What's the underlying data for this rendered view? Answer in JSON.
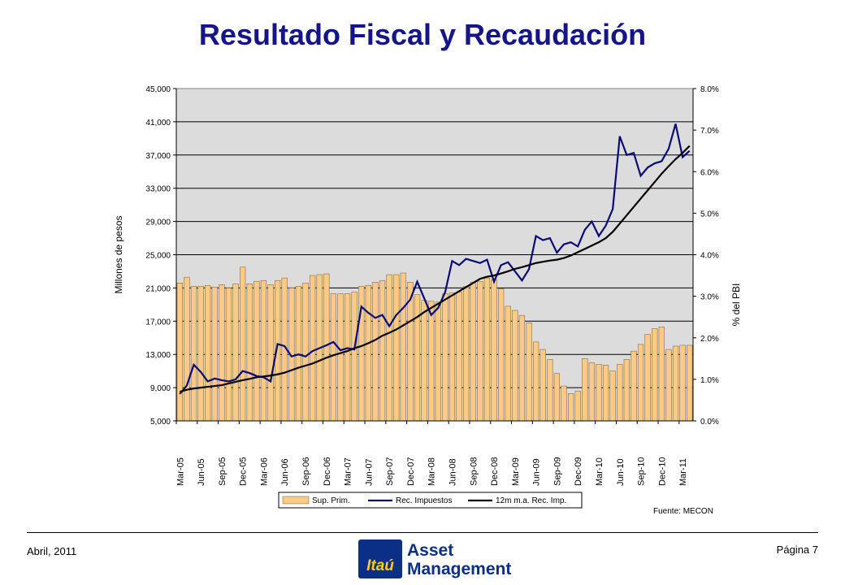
{
  "title": "Resultado Fiscal y Recaudación",
  "source": "Fuente: MECON",
  "footer": {
    "date": "Abril, 2011",
    "page": "Página 7"
  },
  "logo": {
    "brand": "Itaú",
    "line1": "Asset",
    "line2": "Management"
  },
  "colors": {
    "title": "#15158a",
    "bars": "#fcca86",
    "bar_border": "#7a5a20",
    "rec_impuestos": "#0a0a78",
    "ma": "#000000",
    "plot_bg": "#dcdcdc"
  },
  "chart_data": {
    "type": "bar",
    "ylabel": "Millones de pesos",
    "y2label": "% del PBI",
    "ylim": [
      5000,
      45000
    ],
    "y2lim": [
      0,
      8
    ],
    "yticks": [
      "5,000",
      "9,000",
      "13,000",
      "17,000",
      "21,000",
      "25,000",
      "29,000",
      "33,000",
      "37,000",
      "41,000",
      "45,000"
    ],
    "y2ticks": [
      "0.0%",
      "1.0%",
      "2.0%",
      "3.0%",
      "4.0%",
      "5.0%",
      "6.0%",
      "7.0%",
      "8.0%"
    ],
    "xticks": [
      "Mar-05",
      "Jun-05",
      "Sep-05",
      "Dec-05",
      "Mar-06",
      "Jun-06",
      "Sep-06",
      "Dec-06",
      "Mar-07",
      "Jun-07",
      "Sep-07",
      "Dec-07",
      "Mar-08",
      "Jun-08",
      "Sep-08",
      "Dec-08",
      "Mar-09",
      "Jun-09",
      "Sep-09",
      "Dec-09",
      "Mar-10",
      "Jun-10",
      "Sep-10",
      "Dec-10",
      "Mar-11"
    ],
    "grid": true,
    "legend": "bottom",
    "series": [
      {
        "name": "Sup. Prim.",
        "axis": "left",
        "kind": "bar",
        "values": [
          21600,
          22300,
          21200,
          21200,
          21300,
          21100,
          21400,
          21000,
          21500,
          23500,
          21500,
          21800,
          21900,
          21400,
          21900,
          22200,
          21000,
          21200,
          21600,
          22500,
          22600,
          22700,
          20300,
          20300,
          20300,
          20500,
          21200,
          21300,
          21700,
          21900,
          22600,
          22600,
          22800,
          21700,
          20200,
          19500,
          19400,
          19300,
          20300,
          20400,
          20500,
          21200,
          21700,
          21800,
          22200,
          22000,
          20900,
          18800,
          18300,
          17700,
          16800,
          14500,
          13600,
          12400,
          10700,
          9200,
          8300,
          8600,
          12500,
          12000,
          11800,
          11700,
          11000,
          11800,
          12400,
          13400,
          14200,
          15400,
          16100,
          16300,
          13600,
          14000,
          14100,
          14100
        ]
      },
      {
        "name": "Rec. Impuestos",
        "axis": "right",
        "kind": "line",
        "values": [
          0.65,
          0.85,
          1.35,
          1.18,
          0.95,
          1.02,
          0.98,
          0.95,
          1.0,
          1.2,
          1.15,
          1.08,
          1.05,
          0.95,
          1.85,
          1.8,
          1.55,
          1.6,
          1.55,
          1.68,
          1.75,
          1.82,
          1.9,
          1.7,
          1.75,
          1.72,
          2.75,
          2.6,
          2.48,
          2.55,
          2.28,
          2.55,
          2.72,
          2.92,
          3.35,
          2.95,
          2.55,
          2.72,
          3.1,
          3.85,
          3.75,
          3.9,
          3.85,
          3.8,
          3.88,
          3.35,
          3.75,
          3.82,
          3.6,
          3.38,
          3.65,
          4.45,
          4.35,
          4.4,
          4.05,
          4.25,
          4.3,
          4.2,
          4.6,
          4.8,
          4.45,
          4.7,
          5.1,
          6.85,
          6.4,
          6.45,
          5.9,
          6.1,
          6.2,
          6.25,
          6.55,
          7.15,
          6.35,
          6.5
        ]
      },
      {
        "name": "12m m.a. Rec. Imp.",
        "axis": "right",
        "kind": "line",
        "values": [
          0.7,
          0.75,
          0.78,
          0.8,
          0.82,
          0.84,
          0.86,
          0.9,
          0.94,
          0.98,
          1.01,
          1.05,
          1.07,
          1.09,
          1.12,
          1.16,
          1.22,
          1.28,
          1.33,
          1.38,
          1.45,
          1.52,
          1.58,
          1.63,
          1.68,
          1.75,
          1.8,
          1.87,
          1.95,
          2.05,
          2.12,
          2.2,
          2.3,
          2.4,
          2.5,
          2.62,
          2.72,
          2.82,
          2.92,
          3.02,
          3.12,
          3.22,
          3.32,
          3.42,
          3.47,
          3.5,
          3.55,
          3.6,
          3.66,
          3.7,
          3.75,
          3.8,
          3.83,
          3.86,
          3.88,
          3.92,
          3.98,
          4.06,
          4.14,
          4.22,
          4.3,
          4.4,
          4.55,
          4.75,
          4.95,
          5.15,
          5.35,
          5.55,
          5.75,
          5.95,
          6.13,
          6.3,
          6.45,
          6.62
        ]
      }
    ]
  }
}
